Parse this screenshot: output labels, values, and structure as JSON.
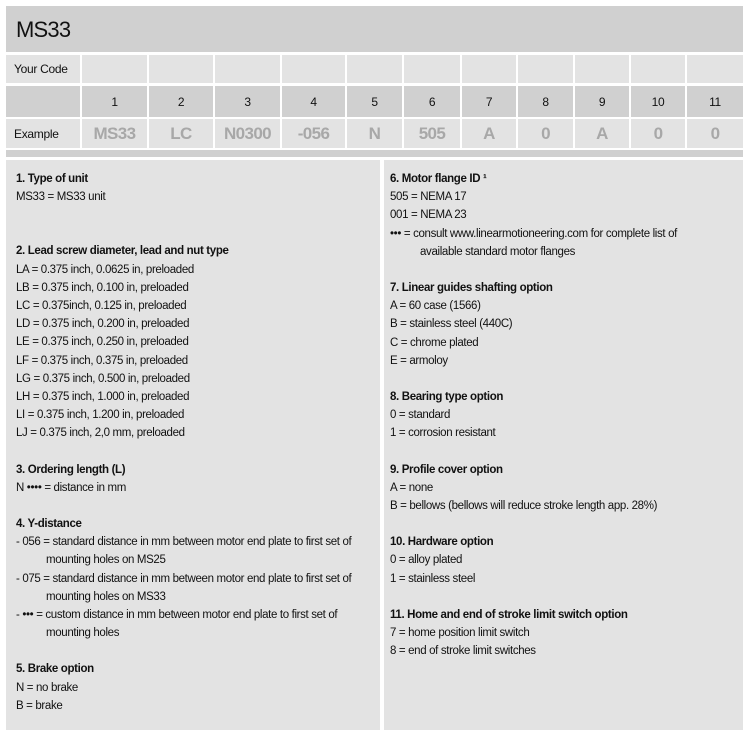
{
  "title": "MS33",
  "your_code_label": "Your Code",
  "example_label": "Example",
  "columns": [
    "1",
    "2",
    "3",
    "4",
    "5",
    "6",
    "7",
    "8",
    "9",
    "10",
    "11"
  ],
  "example": [
    "MS33",
    "LC",
    "N0300",
    "-056",
    "N",
    "505",
    "A",
    "0",
    "A",
    "0",
    "0"
  ],
  "left": [
    {
      "heading": "1. Type of unit",
      "lines": [
        "MS33 = MS33 unit"
      ],
      "gap": true
    },
    {
      "heading": "2. Lead screw diameter, lead and nut type",
      "lines": [
        "LA = 0.375 inch, 0.0625 in, preloaded",
        "LB = 0.375 inch, 0.100 in, preloaded",
        "LC = 0.375inch, 0.125 in, preloaded",
        "LD = 0.375 inch, 0.200 in, preloaded",
        "LE = 0.375 inch, 0.250 in, preloaded",
        "LF = 0.375 inch, 0.375 in, preloaded",
        "LG = 0.375 inch, 0.500 in, preloaded",
        "LH = 0.375 inch, 1.000 in, preloaded",
        "LI = 0.375 inch,  1.200 in, preloaded",
        "LJ = 0.375 inch, 2,0 mm, preloaded"
      ]
    },
    {
      "heading": "3. Ordering length  (L)",
      "lines": [
        "N •••• = distance in mm"
      ]
    },
    {
      "heading": "4. Y-distance",
      "lines": [
        "- 056 = standard distance in mm between motor end plate to first set of",
        "mounting holes on MS25",
        "- 075 = standard distance in mm between motor end plate to first set of",
        "mounting holes on MS33",
        "- ••• = custom distance in mm between motor end plate to first set of",
        "mounting holes"
      ],
      "indent": [
        1,
        3,
        5
      ]
    },
    {
      "heading": "5. Brake option",
      "lines": [
        "N = no brake",
        "B = brake"
      ]
    }
  ],
  "right": [
    {
      "heading": "6. Motor flange ID ¹",
      "lines": [
        "505 = NEMA 17",
        "001 = NEMA 23",
        "••• = consult www.linearmotioneering.com for complete list of",
        "available standard motor flanges"
      ],
      "indent": [
        3
      ]
    },
    {
      "heading": "7. Linear guides shafting option",
      "lines": [
        "A = 60 case (1566)",
        "B = stainless steel (440C)",
        "C = chrome plated",
        "E = armoloy"
      ]
    },
    {
      "heading": "8. Bearing type option",
      "lines": [
        "0 = standard",
        "1 = corrosion resistant"
      ]
    },
    {
      "heading": "9. Profile cover option",
      "lines": [
        "A = none",
        "B = bellows (bellows will reduce stroke length app. 28%)"
      ]
    },
    {
      "heading": "10. Hardware option",
      "lines": [
        "0 = alloy plated",
        "1 = stainless steel"
      ]
    },
    {
      "heading": "11. Home and end of stroke limit switch option",
      "lines": [
        "7 = home position limit switch",
        "8 = end of stroke limit switches"
      ]
    }
  ]
}
